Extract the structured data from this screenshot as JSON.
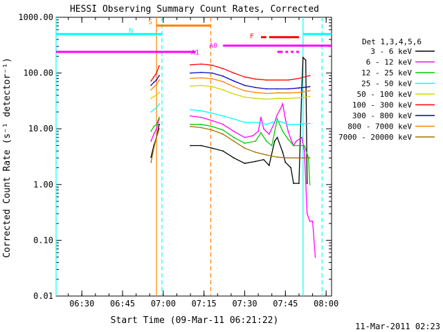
{
  "chart_data": {
    "type": "line",
    "title": "HESSI Observing Summary Count Rates, Corrected",
    "xlabel": "Start Time (09-Mar-11 06:21:22)",
    "ylabel": "Corrected Count Rate (s⁻¹ detector⁻¹)",
    "y_scale": "log",
    "ylim": [
      0.01,
      1000
    ],
    "xlim_minutes_after_0620": [
      0.5,
      102
    ],
    "x_tick_labels": [
      "06:30",
      "06:45",
      "07:00",
      "07:15",
      "07:30",
      "07:45",
      "08:00"
    ],
    "y_tick_labels": [
      "0.01",
      "0.10",
      "1.00",
      "10.00",
      "100.00",
      "1000.00"
    ],
    "legend_title": "Det 1,3,4,5,6",
    "legend_position": "right",
    "series": [
      {
        "name": "3 - 6 keV",
        "color": "#000000",
        "segments": [
          [
            [
              35.5,
              3.1
            ],
            [
              36.5,
              5
            ],
            [
              37.5,
              7
            ],
            [
              38.5,
              12
            ]
          ],
          [
            [
              50,
              5
            ],
            [
              54,
              5
            ],
            [
              58,
              4.5
            ],
            [
              62,
              4
            ],
            [
              66,
              3
            ],
            [
              70,
              2.4
            ],
            [
              74,
              2.6
            ],
            [
              77,
              2.8
            ],
            [
              79,
              2.2
            ],
            [
              81,
              6
            ],
            [
              82,
              7
            ],
            [
              84,
              3.8
            ],
            [
              85,
              2.5
            ],
            [
              87,
              2
            ],
            [
              88,
              1.05
            ],
            [
              90,
              1.05
            ],
            [
              91,
              50
            ],
            [
              91.5,
              190
            ],
            [
              92.5,
              170
            ],
            [
              93,
              1.05
            ]
          ]
        ]
      },
      {
        "name": "6 - 12 keV",
        "color": "#ff00ff",
        "segments": [
          [
            [
              35.5,
              6
            ],
            [
              36.5,
              8
            ],
            [
              37.5,
              10
            ],
            [
              38.5,
              15
            ]
          ],
          [
            [
              50,
              17
            ],
            [
              54,
              16
            ],
            [
              58,
              14
            ],
            [
              62,
              12
            ],
            [
              66,
              9
            ],
            [
              70,
              7
            ],
            [
              73,
              7.5
            ],
            [
              75,
              9
            ],
            [
              76,
              16
            ],
            [
              77,
              10
            ],
            [
              79,
              8
            ],
            [
              81,
              13
            ],
            [
              82,
              18
            ],
            [
              83,
              22
            ],
            [
              84,
              28
            ],
            [
              85,
              15
            ],
            [
              86,
              9
            ],
            [
              87,
              6.5
            ],
            [
              88,
              5
            ],
            [
              89,
              6
            ],
            [
              91,
              7
            ],
            [
              92,
              4
            ],
            [
              93,
              0.3
            ],
            [
              94,
              0.22
            ],
            [
              95,
              0.22
            ],
            [
              96,
              0.05
            ]
          ]
        ]
      },
      {
        "name": "12 - 25 keV",
        "color": "#00cc00",
        "segments": [
          [
            [
              35.5,
              9
            ],
            [
              36.5,
              11
            ],
            [
              37.5,
              12
            ],
            [
              38.5,
              16
            ]
          ],
          [
            [
              50,
              12
            ],
            [
              54,
              12
            ],
            [
              58,
              11
            ],
            [
              62,
              9.5
            ],
            [
              66,
              7
            ],
            [
              70,
              5.5
            ],
            [
              74,
              6
            ],
            [
              76,
              8.5
            ],
            [
              78,
              6
            ],
            [
              80,
              5
            ],
            [
              82,
              15
            ],
            [
              84,
              9
            ],
            [
              86,
              6.5
            ],
            [
              88,
              5
            ],
            [
              90,
              5
            ],
            [
              92,
              5
            ],
            [
              93.5,
              3
            ],
            [
              94,
              1.0
            ]
          ]
        ]
      },
      {
        "name": "25 - 50 keV",
        "color": "#00ffff",
        "segments": [
          [
            [
              35.5,
              20
            ],
            [
              36.5,
              22
            ],
            [
              37.5,
              24
            ],
            [
              38.5,
              28
            ]
          ],
          [
            [
              50,
              22
            ],
            [
              54,
              21
            ],
            [
              58,
              19
            ],
            [
              62,
              17
            ],
            [
              66,
              15
            ],
            [
              70,
              13
            ],
            [
              74,
              13
            ],
            [
              78,
              12
            ],
            [
              82,
              14
            ],
            [
              86,
              12
            ],
            [
              90,
              12
            ],
            [
              94,
              12.5
            ]
          ]
        ]
      },
      {
        "name": "50 - 100 keV",
        "color": "#d2d200",
        "segments": [
          [
            [
              35.5,
              35
            ],
            [
              36.5,
              38
            ],
            [
              37.5,
              40
            ],
            [
              38.5,
              45
            ]
          ],
          [
            [
              50,
              58
            ],
            [
              54,
              60
            ],
            [
              58,
              57
            ],
            [
              62,
              50
            ],
            [
              66,
              42
            ],
            [
              70,
              37
            ],
            [
              74,
              35
            ],
            [
              78,
              34
            ],
            [
              82,
              35
            ],
            [
              86,
              35
            ],
            [
              90,
              36
            ],
            [
              94,
              38
            ]
          ]
        ]
      },
      {
        "name": "100 - 300 keV",
        "color": "#ff0000",
        "segments": [
          [
            [
              35.5,
              72
            ],
            [
              36.5,
              85
            ],
            [
              37.5,
              100
            ],
            [
              38.5,
              135
            ]
          ],
          [
            [
              50,
              140
            ],
            [
              54,
              145
            ],
            [
              58,
              138
            ],
            [
              62,
              120
            ],
            [
              66,
              100
            ],
            [
              70,
              85
            ],
            [
              74,
              78
            ],
            [
              78,
              75
            ],
            [
              82,
              75
            ],
            [
              86,
              75
            ],
            [
              90,
              80
            ],
            [
              94,
              90
            ]
          ]
        ]
      },
      {
        "name": "300 - 800 keV",
        "color": "#0000c8",
        "segments": [
          [
            [
              35.5,
              60
            ],
            [
              36.5,
              68
            ],
            [
              37.5,
              75
            ],
            [
              38.5,
              90
            ]
          ],
          [
            [
              50,
              100
            ],
            [
              54,
              103
            ],
            [
              58,
              100
            ],
            [
              62,
              88
            ],
            [
              66,
              72
            ],
            [
              70,
              60
            ],
            [
              74,
              55
            ],
            [
              78,
              52
            ],
            [
              82,
              52
            ],
            [
              86,
              52
            ],
            [
              90,
              54
            ],
            [
              94,
              57
            ]
          ]
        ]
      },
      {
        "name": "800 - 7000 keV",
        "color": "#ff8000",
        "segments": [
          [
            [
              35.5,
              50
            ],
            [
              36.5,
              56
            ],
            [
              37.5,
              62
            ],
            [
              38.5,
              75
            ]
          ],
          [
            [
              50,
              80
            ],
            [
              54,
              82
            ],
            [
              58,
              79
            ],
            [
              62,
              70
            ],
            [
              66,
              57
            ],
            [
              70,
              48
            ],
            [
              74,
              45
            ],
            [
              78,
              43
            ],
            [
              82,
              44
            ],
            [
              86,
              44
            ],
            [
              90,
              45
            ],
            [
              94,
              48
            ]
          ]
        ]
      },
      {
        "name": "7000 - 20000 keV",
        "color": "#a07000",
        "segments": [
          [
            [
              35.5,
              2.5
            ],
            [
              36.5,
              4.5
            ],
            [
              37.5,
              7
            ],
            [
              38.5,
              10
            ]
          ],
          [
            [
              50,
              11
            ],
            [
              54,
              10.5
            ],
            [
              58,
              9.5
            ],
            [
              62,
              8
            ],
            [
              66,
              6
            ],
            [
              70,
              4.5
            ],
            [
              74,
              3.8
            ],
            [
              78,
              3.4
            ],
            [
              82,
              3.1
            ],
            [
              86,
              3
            ],
            [
              90,
              3
            ],
            [
              94,
              3
            ]
          ]
        ]
      }
    ],
    "vertical_lines": [
      {
        "x": 0.5,
        "color": "#00ffff",
        "style": "solid"
      },
      {
        "x": 37.5,
        "color": "#ff8000",
        "style": "solid"
      },
      {
        "x": 39.5,
        "color": "#00ffff",
        "style": "dashed"
      },
      {
        "x": 57.5,
        "color": "#ff8000",
        "style": "dashed"
      },
      {
        "x": 91.5,
        "color": "#00ffff",
        "style": "solid"
      },
      {
        "x": 98.5,
        "color": "#00ffff",
        "style": "dashed"
      }
    ],
    "state_bars": [
      {
        "label": "S",
        "color": "#ff8000",
        "intervals": [
          [
            37.5,
            57.5
          ]
        ],
        "level": 710
      },
      {
        "label": "N",
        "color": "#00ffff",
        "intervals": [
          [
            0.5,
            39.5
          ],
          [
            91.5,
            102
          ]
        ],
        "level": 500
      },
      {
        "label": "A0",
        "color": "#ff00ff",
        "intervals": [
          [
            62,
            102
          ]
        ],
        "level": 310
      },
      {
        "label": "A1",
        "color": "#ff00ff",
        "intervals": [
          [
            0.5,
            52
          ]
        ],
        "level": 240
      },
      {
        "label": "F",
        "color": "#ff0000",
        "intervals": [
          [
            76,
            78
          ],
          [
            79,
            82
          ],
          [
            82,
            90
          ]
        ],
        "level": 440
      }
    ],
    "gap_bars": {
      "color": "#ff00ff",
      "intervals": [
        [
          82,
          84
        ],
        [
          85,
          86
        ],
        [
          87,
          88
        ],
        [
          89,
          90
        ]
      ],
      "level": 240
    }
  },
  "footer_timestamp": "11-Mar-2011 02:23"
}
